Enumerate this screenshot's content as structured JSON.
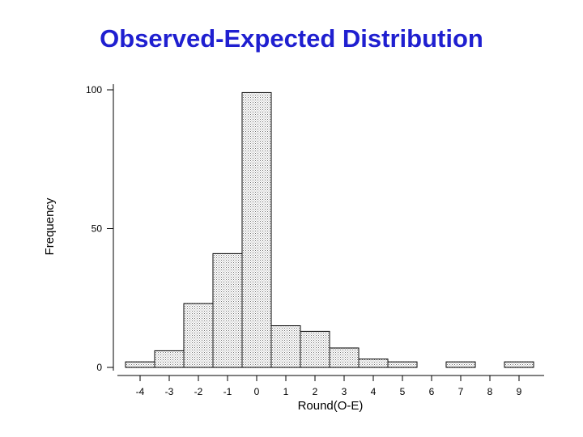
{
  "title": "Observed-Expected Distribution",
  "chart_data": {
    "type": "bar",
    "title": "Observed-Expected Distribution",
    "xlabel": "Round(O-E)",
    "ylabel": "Frequency",
    "x": [
      -4,
      -3,
      -2,
      -1,
      0,
      1,
      2,
      3,
      4,
      5,
      7,
      9
    ],
    "values": [
      2,
      6,
      23,
      41,
      99,
      15,
      13,
      7,
      3,
      2,
      2,
      2
    ],
    "x_ticks": [
      "-4",
      "-3",
      "-2",
      "-1",
      "0",
      "1",
      "2",
      "3",
      "4",
      "5",
      "6",
      "7",
      "8",
      "9"
    ],
    "y_ticks": [
      "0",
      "50",
      "100"
    ],
    "xlim": [
      -4.5,
      9.5
    ],
    "ylim": [
      0,
      100
    ],
    "grid": false,
    "bar_fill": "#d4d4d4",
    "bar_stroke": "#000000",
    "title_color": "#1f1fd0"
  }
}
